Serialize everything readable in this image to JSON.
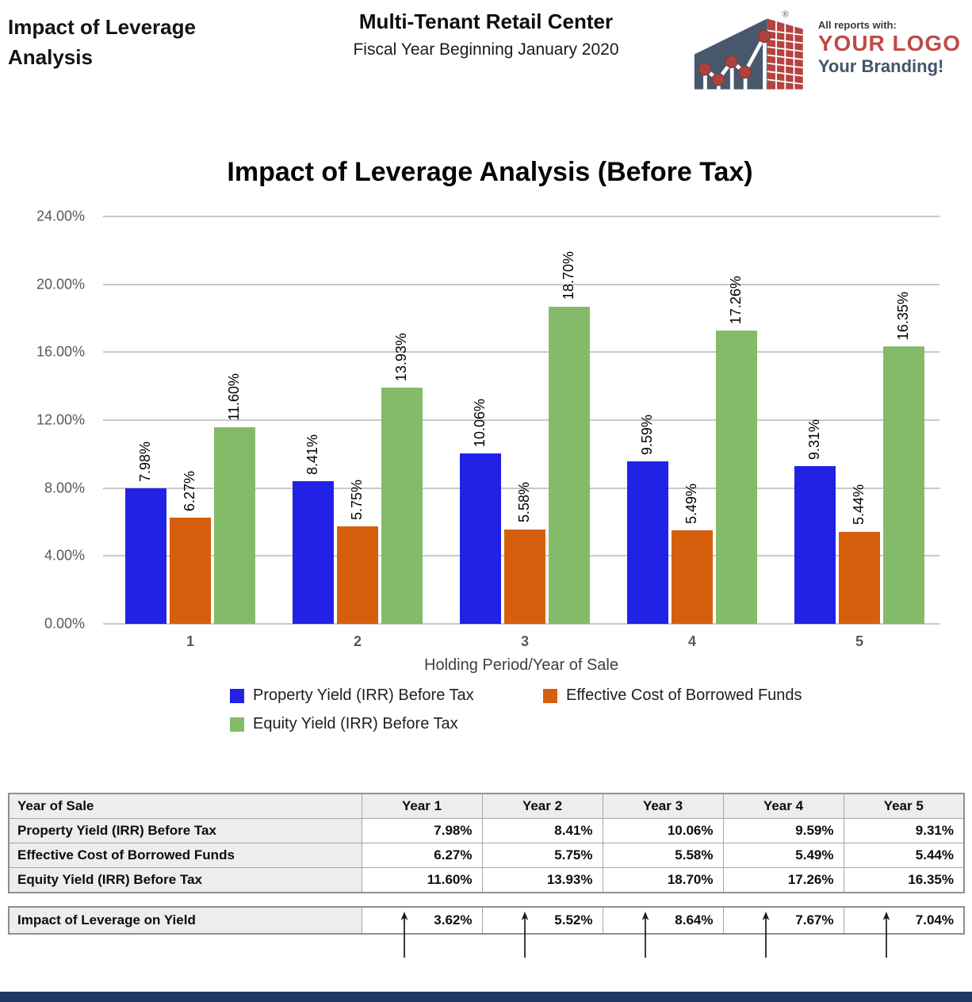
{
  "header": {
    "report_title": "Impact of Leverage Analysis",
    "property_name": "Multi-Tenant Retail Center",
    "fiscal_year": "Fiscal Year Beginning January 2020",
    "logo": {
      "tagline_top": "All reports with:",
      "logo_text": "YOUR LOGO",
      "tagline_bottom": "Your Branding!",
      "registered_mark": "®"
    }
  },
  "colors": {
    "property_yield": "#2222e6",
    "borrowed_funds": "#d65f0e",
    "equity_yield": "#84bb69",
    "logo_slate": "#47586c",
    "logo_red": "#b5433f",
    "logo_text_red": "#be4b48",
    "logo_text_slate": "#44546a",
    "footer_navy": "#1f3864",
    "gridline": "#c9c9c9"
  },
  "chart_data": {
    "type": "bar",
    "title": "Impact of Leverage Analysis (Before Tax)",
    "xlabel": "Holding Period/Year of Sale",
    "ylabel": "",
    "ylim": [
      0,
      24
    ],
    "ytick_step": 4,
    "grid": true,
    "legend_position": "bottom",
    "yticks": [
      "24.00%",
      "20.00%",
      "16.00%",
      "12.00%",
      "8.00%",
      "4.00%",
      "0.00%"
    ],
    "categories": [
      "1",
      "2",
      "3",
      "4",
      "5"
    ],
    "series": [
      {
        "name": "Property Yield (IRR) Before Tax",
        "color": "#2222e6",
        "values": [
          7.98,
          8.41,
          10.06,
          9.59,
          9.31
        ],
        "labels": [
          "7.98%",
          "8.41%",
          "10.06%",
          "9.59%",
          "9.31%"
        ]
      },
      {
        "name": "Effective Cost of Borrowed Funds",
        "color": "#d65f0e",
        "values": [
          6.27,
          5.75,
          5.58,
          5.49,
          5.44
        ],
        "labels": [
          "6.27%",
          "5.75%",
          "5.58%",
          "5.49%",
          "5.44%"
        ]
      },
      {
        "name": "Equity Yield (IRR) Before Tax",
        "color": "#84bb69",
        "values": [
          11.6,
          13.93,
          18.7,
          17.26,
          16.35
        ],
        "labels": [
          "11.60%",
          "13.93%",
          "18.70%",
          "17.26%",
          "16.35%"
        ]
      }
    ]
  },
  "table": {
    "header": [
      "Year of Sale",
      "Year 1",
      "Year 2",
      "Year 3",
      "Year 4",
      "Year 5"
    ],
    "rows": [
      {
        "label": "Property Yield (IRR) Before Tax",
        "values": [
          "7.98%",
          "8.41%",
          "10.06%",
          "9.59%",
          "9.31%"
        ]
      },
      {
        "label": "Effective Cost of Borrowed Funds",
        "values": [
          "6.27%",
          "5.75%",
          "5.58%",
          "5.49%",
          "5.44%"
        ]
      },
      {
        "label": "Equity Yield (IRR) Before Tax",
        "values": [
          "11.60%",
          "13.93%",
          "18.70%",
          "17.26%",
          "16.35%"
        ]
      }
    ]
  },
  "impact_row": {
    "label": "Impact of Leverage on Yield",
    "values": [
      "3.62%",
      "5.52%",
      "8.64%",
      "7.67%",
      "7.04%"
    ]
  }
}
